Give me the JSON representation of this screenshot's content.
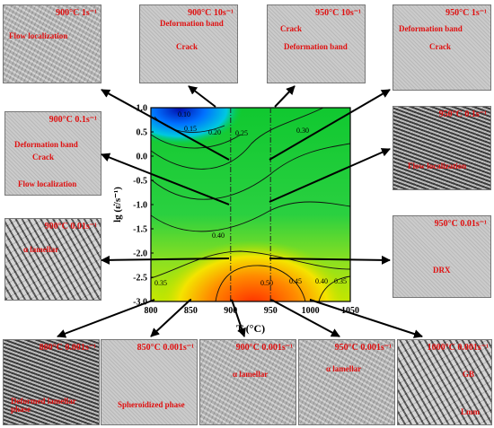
{
  "chart_data": {
    "type": "contour",
    "xlabel": "T (°C)",
    "ylabel": "lg (ε̇/s⁻¹)",
    "xlim": [
      800,
      1050
    ],
    "ylim": [
      -3.0,
      1.0
    ],
    "x_ticks": [
      "800",
      "850",
      "900",
      "950",
      "1000",
      "1050"
    ],
    "y_ticks": [
      "1.0",
      "0.5",
      "0.0",
      "-0.5",
      "-1.0",
      "-1.5",
      "-2.0",
      "-2.5",
      "-3.0"
    ],
    "contour_labels": [
      "0.10",
      "0.15",
      "0.20",
      "0.25",
      "0.30",
      "0.40",
      "0.45",
      "0.40",
      "0.35",
      "0.50",
      "0.35"
    ],
    "dash_lines_x": [
      900,
      950
    ]
  },
  "panels": [
    {
      "id": "p1",
      "title": "900°C 1s⁻¹",
      "labels": [
        "Flow localization"
      ]
    },
    {
      "id": "p2",
      "title": "900°C 10s⁻¹",
      "labels": [
        "Deformation band",
        "Crack"
      ]
    },
    {
      "id": "p3",
      "title": "950°C 10s⁻¹",
      "labels": [
        "Crack",
        "Deformation band"
      ]
    },
    {
      "id": "p4",
      "title": "950°C 1s⁻¹",
      "labels": [
        "Deformation band",
        "Crack"
      ]
    },
    {
      "id": "p5",
      "title": "900°C 0.1s⁻¹",
      "labels": [
        "Deformation band",
        "Crack",
        "Flow localization"
      ]
    },
    {
      "id": "p6",
      "title": "950°C 0.1s⁻¹",
      "labels": [
        "Flow localization"
      ]
    },
    {
      "id": "p7",
      "title": "900°C 0.01s⁻¹",
      "labels": [
        "α lamellar"
      ]
    },
    {
      "id": "p8",
      "title": "950°C 0.01s⁻¹",
      "labels": [
        "DRX"
      ]
    },
    {
      "id": "p9",
      "title": "800°C 0.001s⁻¹",
      "labels": [
        "Deformed lamellar phase"
      ]
    },
    {
      "id": "p10",
      "title": "850°C 0.001s⁻¹",
      "labels": [
        "Spheroidized phase"
      ]
    },
    {
      "id": "p11",
      "title": "900°C 0.001s⁻¹",
      "labels": [
        "α lamellar"
      ]
    },
    {
      "id": "p12",
      "title": "950°C 0.001s⁻¹",
      "labels": [
        "α lamellar"
      ]
    },
    {
      "id": "p13",
      "title": "1000°C 0.001s⁻¹",
      "labels": [
        "GB",
        "Lmm"
      ]
    }
  ]
}
